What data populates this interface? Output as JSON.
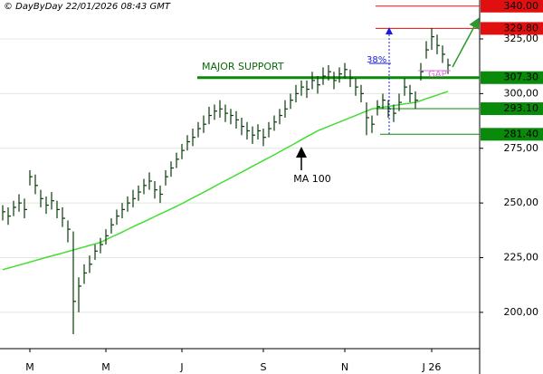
{
  "chart_data": {
    "type": "ohlc",
    "watermark": "© DayByDay 22/01/2026 08:43 GMT",
    "categories": [
      null,
      null,
      null,
      null,
      null,
      "M",
      null,
      null,
      null,
      null,
      null,
      null,
      null,
      null,
      null,
      null,
      null,
      null,
      null,
      "M",
      null,
      null,
      null,
      null,
      null,
      null,
      null,
      null,
      null,
      null,
      null,
      null,
      null,
      "J",
      null,
      null,
      null,
      null,
      null,
      null,
      null,
      null,
      null,
      null,
      null,
      null,
      null,
      null,
      "S",
      null,
      null,
      null,
      null,
      null,
      null,
      null,
      null,
      null,
      null,
      null,
      null,
      null,
      null,
      "N",
      null,
      null,
      null,
      null,
      null,
      null,
      null,
      null,
      null,
      null,
      null,
      null,
      null,
      null,
      null,
      "J 26",
      null,
      null,
      null
    ],
    "high": [
      249,
      248,
      251,
      254,
      252,
      265,
      263,
      256,
      253,
      255,
      251,
      248,
      242,
      237,
      216,
      222,
      226,
      231,
      234,
      238,
      243,
      247,
      250,
      253,
      256,
      258,
      261,
      264,
      260,
      258,
      265,
      269,
      273,
      277,
      281,
      284,
      287,
      290,
      294,
      295,
      297,
      295,
      293,
      292,
      289,
      287,
      285,
      286,
      284,
      287,
      290,
      293,
      297,
      300,
      304,
      306,
      306,
      310,
      308,
      312,
      313,
      310,
      312,
      314,
      311,
      307,
      304,
      296,
      290,
      297,
      300,
      297,
      295,
      300,
      307,
      304,
      301,
      314,
      324,
      330,
      327,
      322,
      316
    ],
    "low": [
      242,
      240,
      244,
      246,
      243,
      258,
      254,
      248,
      245,
      247,
      243,
      239,
      232,
      190,
      200,
      213,
      218,
      224,
      227,
      231,
      236,
      240,
      243,
      246,
      248,
      251,
      254,
      256,
      252,
      250,
      258,
      262,
      266,
      270,
      274,
      276,
      280,
      282,
      286,
      288,
      289,
      287,
      286,
      284,
      281,
      279,
      277,
      279,
      276,
      280,
      283,
      286,
      289,
      293,
      296,
      299,
      298,
      302,
      300,
      304,
      306,
      302,
      305,
      307,
      303,
      299,
      296,
      281,
      282,
      290,
      293,
      289,
      287,
      292,
      299,
      296,
      293,
      306,
      316,
      320,
      318,
      314,
      309
    ],
    "close": [
      246,
      244,
      248,
      250,
      247,
      262,
      258,
      252,
      249,
      251,
      247,
      243,
      238,
      205,
      212,
      218,
      222,
      228,
      231,
      235,
      240,
      244,
      247,
      250,
      252,
      255,
      258,
      260,
      256,
      254,
      262,
      266,
      270,
      274,
      278,
      280,
      284,
      286,
      290,
      292,
      293,
      291,
      290,
      288,
      285,
      283,
      281,
      283,
      280,
      284,
      287,
      290,
      293,
      297,
      300,
      303,
      302,
      306,
      304,
      308,
      310,
      306,
      309,
      311,
      307,
      303,
      300,
      289,
      286,
      294,
      297,
      293,
      291,
      296,
      303,
      300,
      297,
      310,
      320,
      326,
      322,
      318,
      313
    ],
    "bar_color": "#0a3a0a",
    "ma": {
      "label": "MA 100",
      "color": "#44dd33",
      "values": [
        219.5,
        220.2,
        220.9,
        221.6,
        222.3,
        223,
        223.7,
        224.4,
        225.1,
        225.8,
        226.4,
        227.1,
        227.8,
        228.5,
        229.2,
        229.9,
        230.6,
        231.3,
        232,
        233.2,
        234.4,
        235.5,
        236.7,
        237.9,
        239.1,
        240.3,
        241.4,
        242.6,
        243.8,
        245,
        246.1,
        247.3,
        248.5,
        249.7,
        251,
        252.3,
        253.6,
        254.9,
        256.2,
        257.6,
        258.9,
        260.2,
        261.5,
        262.8,
        264.1,
        265.4,
        266.8,
        268.1,
        269.4,
        270.7,
        272,
        273.4,
        274.8,
        276.1,
        277.5,
        278.9,
        280.3,
        281.6,
        283,
        284,
        285,
        286,
        287,
        288,
        289,
        290,
        291,
        292,
        293,
        293.4,
        293.8,
        294.1,
        294.5,
        294.9,
        295.3,
        295.6,
        296,
        296.8,
        297.7,
        298.5,
        299.3,
        300.2,
        301
      ]
    },
    "ylim": [
      183.4,
      342.8
    ],
    "yticks": [
      {
        "value": 200,
        "label": "200,00"
      },
      {
        "value": 225,
        "label": "225,00"
      },
      {
        "value": 250,
        "label": "250,00"
      },
      {
        "value": 275,
        "label": "275,00"
      },
      {
        "value": 300,
        "label": "300,00"
      },
      {
        "value": 325,
        "label": "325,00"
      }
    ],
    "grid": true,
    "levels": [
      {
        "value": 340,
        "label": "340.00",
        "color": "#e01010"
      },
      {
        "value": 329.8,
        "label": "329.80",
        "color": "#e01010"
      },
      {
        "value": 307.3,
        "label": "307.30",
        "color": "#0a8a0a"
      },
      {
        "value": 293.1,
        "label": "293.10",
        "color": "#0a8a0a"
      },
      {
        "value": 281.4,
        "label": "281.40",
        "color": "#0a8a0a"
      }
    ],
    "annotations": {
      "support": "MAJOR SUPPORT",
      "retracement": "38%",
      "gap": "GAP"
    }
  }
}
